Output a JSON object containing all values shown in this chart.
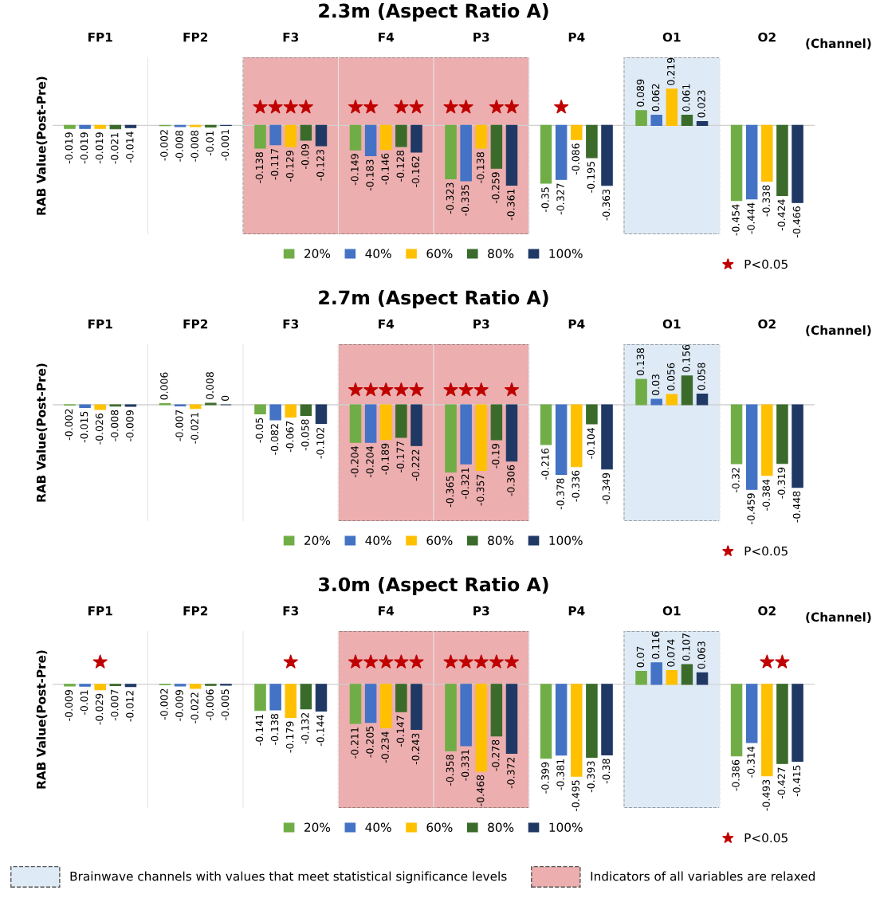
{
  "chart_data": [
    {
      "type": "bar",
      "title": "2.3m (Aspect Ratio A)",
      "ylabel": "RAB Value(Post-Pre)",
      "xlabel": "(Channel)",
      "categories": [
        "FP1",
        "FP2",
        "F3",
        "F4",
        "P3",
        "P4",
        "O1",
        "O2"
      ],
      "tick_labels": "x",
      "legend": "bottom",
      "grid": false,
      "series": [
        {
          "name": "20%",
          "color": "#70ad47",
          "values": [
            -0.019,
            -0.002,
            -0.138,
            -0.149,
            -0.323,
            -0.35,
            0.089,
            -0.454
          ],
          "value_labels": [
            "-0.019",
            "-0.002",
            "-0.138",
            "-0.149",
            "-0.323",
            "-0.35",
            "0.089",
            "-0.454"
          ]
        },
        {
          "name": "40%",
          "color": "#4472c4",
          "values": [
            -0.019,
            -0.008,
            -0.117,
            -0.183,
            -0.335,
            -0.327,
            0.062,
            -0.444
          ],
          "value_labels": [
            "-0.019",
            "-0.008",
            "-0.117",
            "-0.183",
            "-0.335",
            "-0.327",
            "0.062",
            "-0.444"
          ]
        },
        {
          "name": "60%",
          "color": "#ffc000",
          "values": [
            -0.019,
            -0.008,
            -0.129,
            -0.146,
            -0.138,
            -0.086,
            0.219,
            -0.338
          ],
          "value_labels": [
            "-0.019",
            "-0.008",
            "-0.129",
            "-0.146",
            "-0.138",
            "-0.086",
            "0.219",
            "-0.338"
          ]
        },
        {
          "name": "80%",
          "color": "#3b6b2a",
          "values": [
            -0.021,
            -0.01,
            -0.09,
            -0.128,
            -0.259,
            -0.195,
            0.061,
            -0.424
          ],
          "value_labels": [
            "-0.021",
            "-0.01",
            "-0.09",
            "-0.128",
            "-0.259",
            "-0.195",
            "0.061",
            "-0.424"
          ]
        },
        {
          "name": "100%",
          "color": "#203864",
          "values": [
            -0.014,
            -0.001,
            -0.123,
            -0.162,
            -0.361,
            -0.363,
            0.023,
            -0.466
          ],
          "value_labels": [
            "-0.014",
            "-0.001",
            "-0.123",
            "-0.162",
            "-0.361",
            "-0.363",
            "0.023",
            "-0.466"
          ]
        },
        {
          "name": "P<0.05",
          "type": "scatter",
          "marker": "star",
          "color": "#c00000",
          "x": [
            "FP1",
            "FP1",
            "FP1",
            "FP1",
            "FP1",
            "FP2",
            "FP2",
            "FP2",
            "FP2",
            "FP2",
            "F3",
            "F3",
            "F3",
            "F3",
            "F3",
            "F4",
            "F4",
            "F4",
            "F4",
            "F4",
            "P3",
            "P3",
            "P3",
            "P3",
            "P3",
            "P4",
            "P4",
            "P4",
            "P4",
            "P4",
            "O1",
            "O1",
            "O1",
            "O1",
            "O1",
            "O2",
            "O2",
            "O2",
            "O2",
            "O2"
          ],
          "values": [
            null,
            null,
            null,
            null,
            null,
            null,
            null,
            null,
            null,
            null,
            0.11,
            0.11,
            0.11,
            0.11,
            null,
            0.11,
            0.11,
            null,
            0.11,
            0.11,
            0.11,
            0.11,
            null,
            0.11,
            0.11,
            null,
            0.11,
            null,
            null,
            null,
            null,
            null,
            null,
            null,
            null,
            null,
            null,
            null,
            null,
            null
          ]
        }
      ],
      "bands": [
        {
          "axis": "x",
          "from": "F3",
          "to": "P3",
          "color": "#ecaeae"
        },
        {
          "axis": "x",
          "from": "O1",
          "to": "O1",
          "color": "#deebf7"
        }
      ]
    },
    {
      "type": "bar",
      "title": "2.7m (Aspect Ratio A)",
      "ylabel": "RAB Value(Post-Pre)",
      "xlabel": "(Channel)",
      "categories": [
        "FP1",
        "FP2",
        "F3",
        "F4",
        "P3",
        "P4",
        "O1",
        "O2"
      ],
      "tick_labels": "x",
      "legend": "bottom",
      "grid": false,
      "series": [
        {
          "name": "20%",
          "color": "#70ad47",
          "values": [
            -0.002,
            0.006,
            -0.05,
            -0.204,
            -0.365,
            -0.216,
            0.138,
            -0.32
          ],
          "value_labels": [
            "-0.002",
            "0.006",
            "-0.05",
            "-0.204",
            "-0.365",
            "-0.216",
            "0.138",
            "-0.32"
          ]
        },
        {
          "name": "40%",
          "color": "#4472c4",
          "values": [
            -0.015,
            -0.007,
            -0.082,
            -0.204,
            -0.321,
            -0.378,
            0.03,
            -0.459
          ],
          "value_labels": [
            "-0.015",
            "-0.007",
            "-0.082",
            "-0.204",
            "-0.321",
            "-0.378",
            "0.03",
            "-0.459"
          ]
        },
        {
          "name": "60%",
          "color": "#ffc000",
          "values": [
            -0.026,
            -0.021,
            -0.067,
            -0.189,
            -0.357,
            -0.336,
            0.056,
            -0.384
          ],
          "value_labels": [
            "-0.026",
            "-0.021",
            "-0.067",
            "-0.189",
            "-0.357",
            "-0.336",
            "0.056",
            "-0.384"
          ]
        },
        {
          "name": "80%",
          "color": "#3b6b2a",
          "values": [
            -0.008,
            0.008,
            -0.058,
            -0.177,
            -0.19,
            -0.104,
            0.156,
            -0.319
          ],
          "value_labels": [
            "-0.008",
            "0.008",
            "-0.058",
            "-0.177",
            "-0.19",
            "-0.104",
            "0.156",
            "-0.319"
          ]
        },
        {
          "name": "100%",
          "color": "#203864",
          "values": [
            -0.009,
            0,
            -0.102,
            -0.222,
            -0.306,
            -0.349,
            0.058,
            -0.448
          ],
          "value_labels": [
            "-0.009",
            "0",
            "-0.102",
            "-0.222",
            "-0.306",
            "-0.349",
            "0.058",
            "-0.448"
          ]
        },
        {
          "name": "P<0.05",
          "type": "scatter",
          "marker": "star",
          "color": "#c00000",
          "x": [
            "FP1",
            "FP1",
            "FP1",
            "FP1",
            "FP1",
            "FP2",
            "FP2",
            "FP2",
            "FP2",
            "FP2",
            "F3",
            "F3",
            "F3",
            "F3",
            "F3",
            "F4",
            "F4",
            "F4",
            "F4",
            "F4",
            "P3",
            "P3",
            "P3",
            "P3",
            "P3",
            "P4",
            "P4",
            "P4",
            "P4",
            "P4",
            "O1",
            "O1",
            "O1",
            "O1",
            "O1",
            "O2",
            "O2",
            "O2",
            "O2",
            "O2"
          ],
          "values": [
            null,
            null,
            null,
            null,
            null,
            null,
            null,
            null,
            null,
            null,
            null,
            null,
            null,
            null,
            null,
            0.08,
            0.08,
            0.08,
            0.08,
            0.08,
            0.08,
            0.08,
            0.08,
            null,
            0.08,
            null,
            null,
            null,
            null,
            null,
            null,
            null,
            null,
            null,
            null,
            null,
            null,
            null,
            null,
            null
          ]
        }
      ],
      "bands": [
        {
          "axis": "x",
          "from": "F4",
          "to": "P3",
          "color": "#ecaeae"
        },
        {
          "axis": "x",
          "from": "O1",
          "to": "O1",
          "color": "#deebf7"
        }
      ]
    },
    {
      "type": "bar",
      "title": "3.0m (Aspect Ratio A)",
      "ylabel": "RAB Value(Post-Pre)",
      "xlabel": "(Channel)",
      "categories": [
        "FP1",
        "FP2",
        "F3",
        "F4",
        "P3",
        "P4",
        "O1",
        "O2"
      ],
      "tick_labels": "x",
      "legend": "bottom",
      "grid": false,
      "series": [
        {
          "name": "20%",
          "color": "#70ad47",
          "values": [
            -0.009,
            -0.002,
            -0.141,
            -0.211,
            -0.358,
            -0.399,
            0.07,
            -0.386
          ],
          "value_labels": [
            "-0.009",
            "-0.002",
            "-0.141",
            "-0.211",
            "-0.358",
            "-0.399",
            "0.07",
            "-0.386"
          ]
        },
        {
          "name": "40%",
          "color": "#4472c4",
          "values": [
            -0.01,
            -0.009,
            -0.138,
            -0.205,
            -0.331,
            -0.381,
            0.116,
            -0.314
          ],
          "value_labels": [
            "-0.01",
            "-0.009",
            "-0.138",
            "-0.205",
            "-0.331",
            "-0.381",
            "0.116",
            "-0.314"
          ]
        },
        {
          "name": "60%",
          "color": "#ffc000",
          "values": [
            -0.029,
            -0.022,
            -0.179,
            -0.234,
            -0.468,
            -0.495,
            0.074,
            -0.493
          ],
          "value_labels": [
            "-0.029",
            "-0.022",
            "-0.179",
            "-0.234",
            "-0.468",
            "-0.495",
            "0.074",
            "-0.493"
          ]
        },
        {
          "name": "80%",
          "color": "#3b6b2a",
          "values": [
            -0.007,
            -0.006,
            -0.132,
            -0.147,
            -0.278,
            -0.393,
            0.107,
            -0.427
          ],
          "value_labels": [
            "-0.007",
            "-0.006",
            "-0.132",
            "-0.147",
            "-0.278",
            "-0.393",
            "0.107",
            "-0.427"
          ]
        },
        {
          "name": "100%",
          "color": "#203864",
          "values": [
            -0.012,
            -0.005,
            -0.144,
            -0.243,
            -0.372,
            -0.38,
            0.063,
            -0.415
          ],
          "value_labels": [
            "-0.012",
            "-0.005",
            "-0.144",
            "-0.243",
            "-0.372",
            "-0.38",
            "0.063",
            "-0.415"
          ]
        },
        {
          "name": "P<0.05",
          "type": "scatter",
          "marker": "star",
          "color": "#c00000",
          "x": [
            "FP1",
            "FP1",
            "FP1",
            "FP1",
            "FP1",
            "FP2",
            "FP2",
            "FP2",
            "FP2",
            "FP2",
            "F3",
            "F3",
            "F3",
            "F3",
            "F3",
            "F4",
            "F4",
            "F4",
            "F4",
            "F4",
            "P3",
            "P3",
            "P3",
            "P3",
            "P3",
            "P4",
            "P4",
            "P4",
            "P4",
            "P4",
            "O1",
            "O1",
            "O1",
            "O1",
            "O1",
            "O2",
            "O2",
            "O2",
            "O2",
            "O2"
          ],
          "values": [
            null,
            null,
            0.12,
            null,
            null,
            null,
            null,
            null,
            null,
            null,
            null,
            null,
            0.12,
            null,
            null,
            0.12,
            0.12,
            0.12,
            0.12,
            0.12,
            0.12,
            0.12,
            0.12,
            0.12,
            0.12,
            null,
            null,
            null,
            null,
            null,
            null,
            null,
            null,
            null,
            null,
            null,
            null,
            0.12,
            0.12,
            null
          ]
        }
      ],
      "bands": [
        {
          "axis": "x",
          "from": "F4",
          "to": "P3",
          "color": "#ecaeae",
          "label": "Indicators of all variables are relaxed"
        },
        {
          "axis": "x",
          "from": "O1",
          "to": "O1",
          "color": "#deebf7",
          "label": "Brainwave channels with values that meet statistical significance levels"
        }
      ]
    }
  ]
}
